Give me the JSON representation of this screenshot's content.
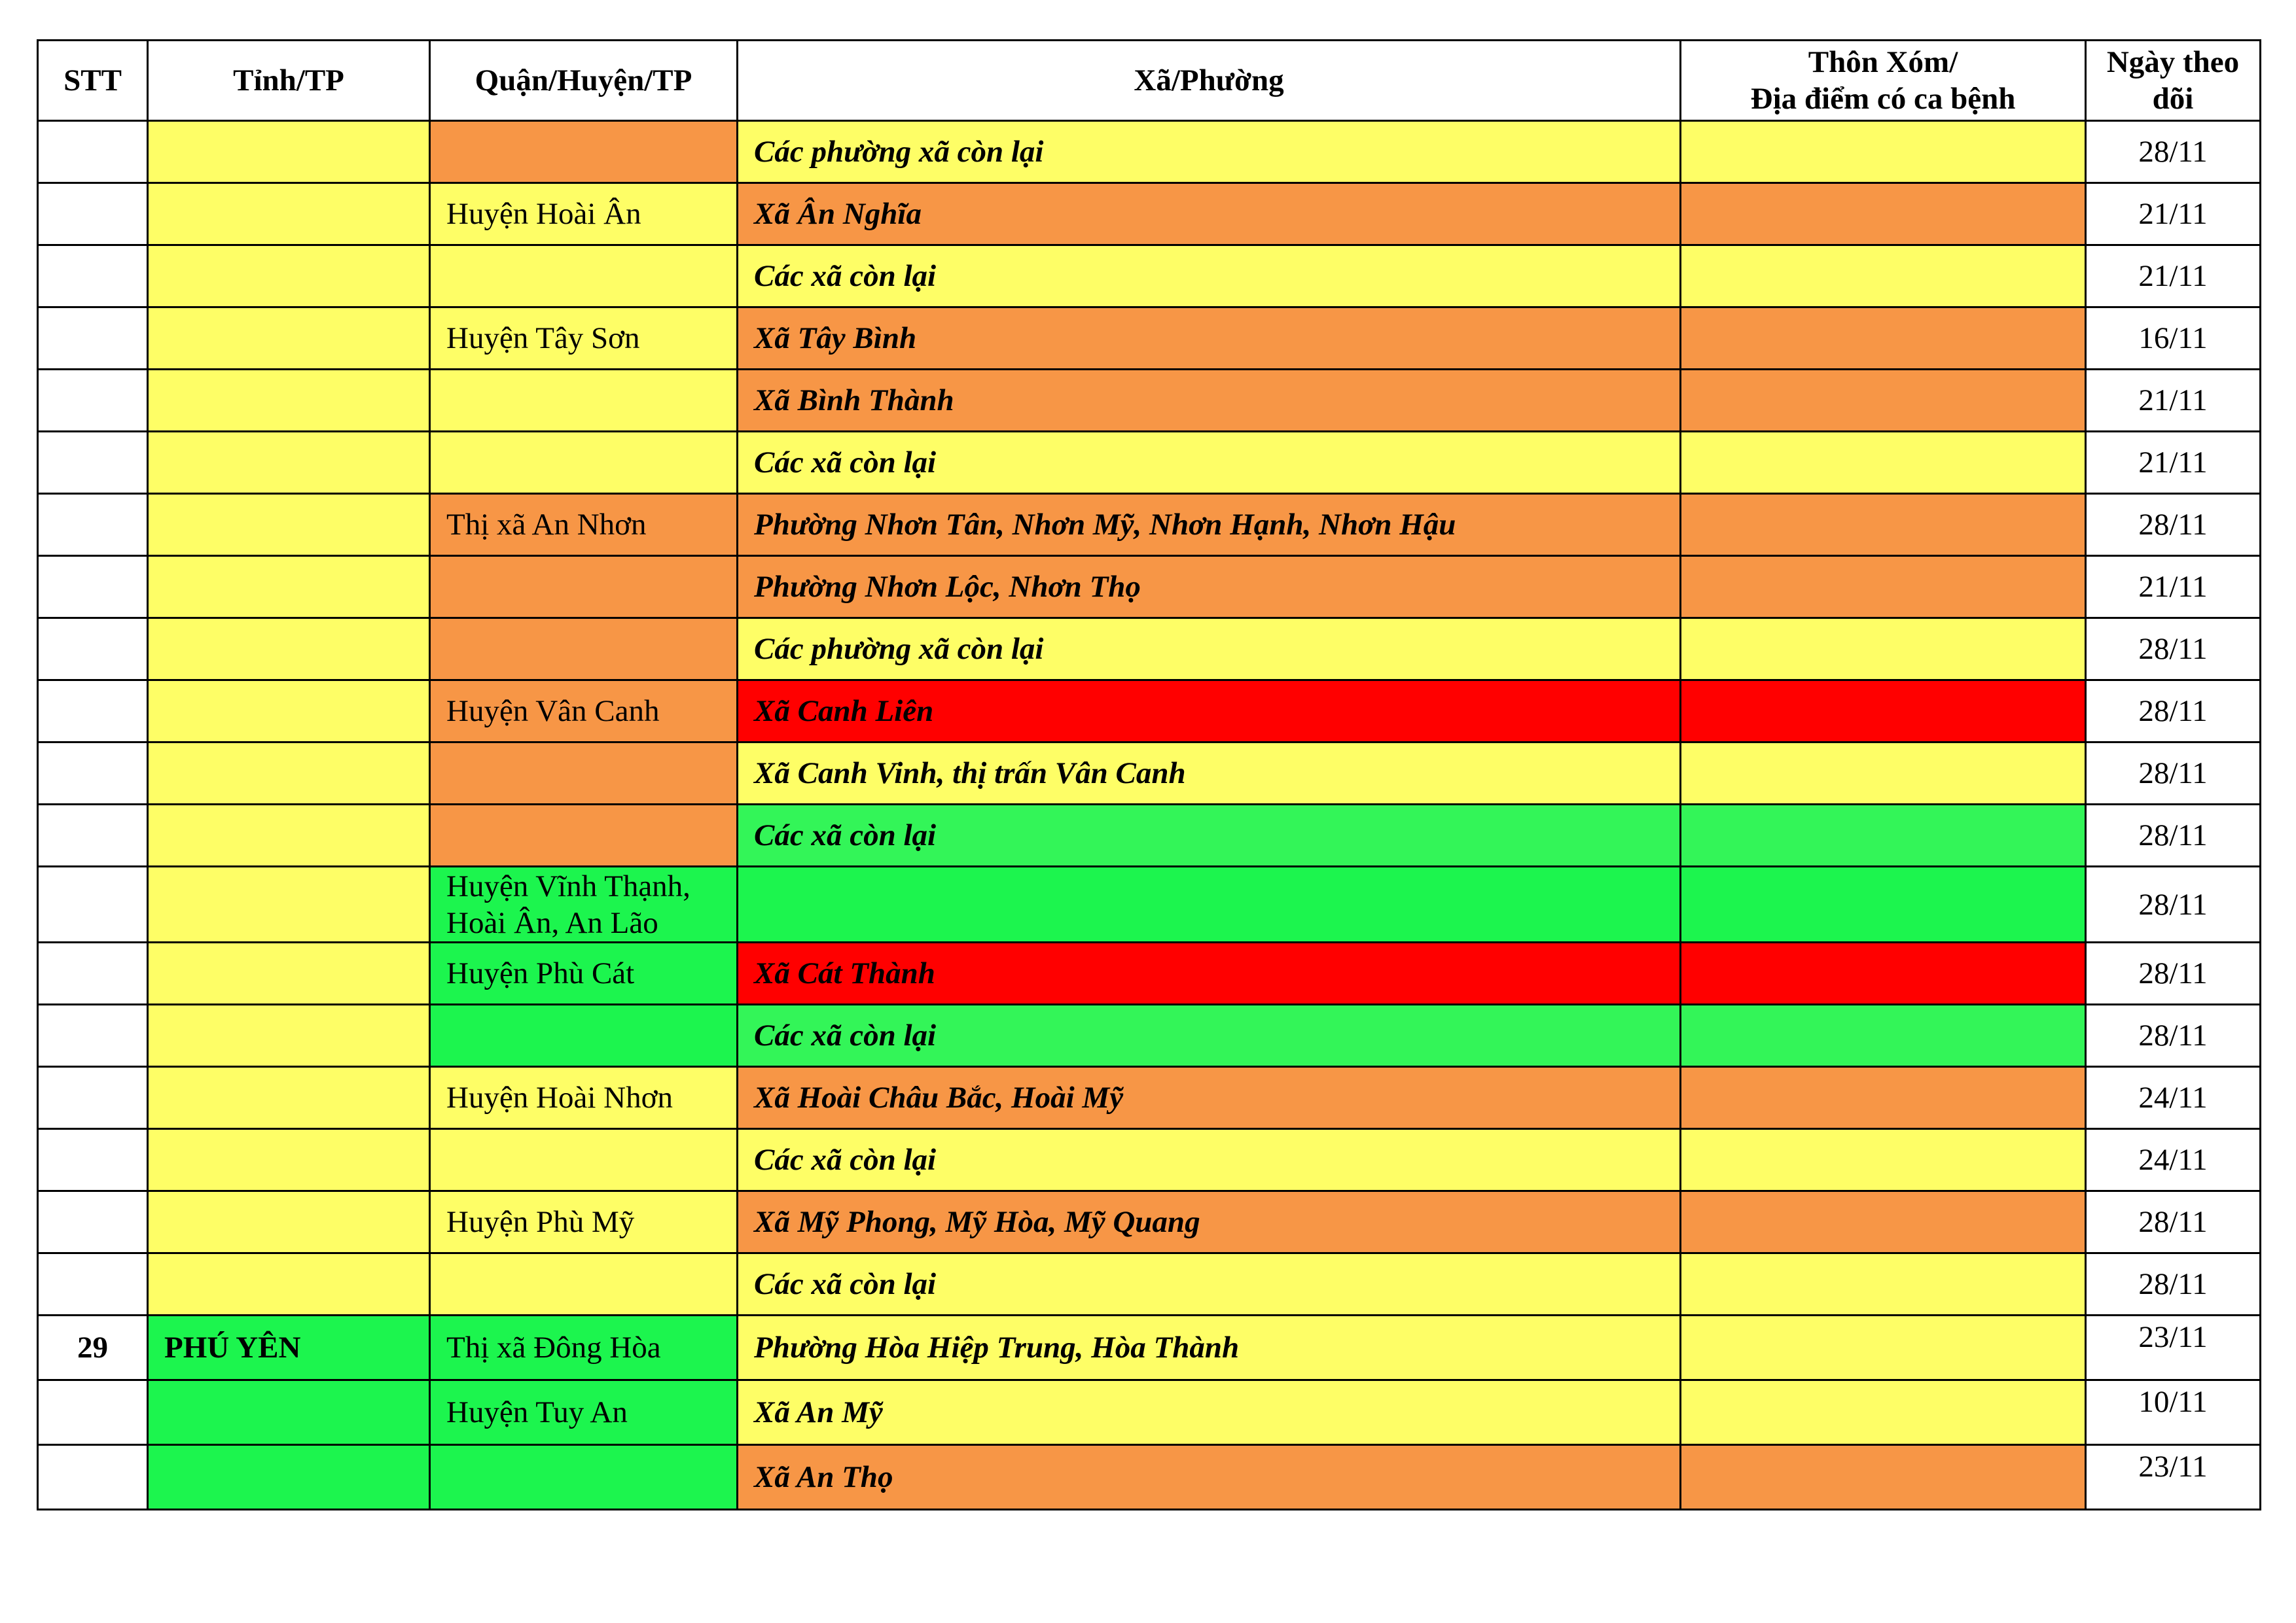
{
  "colors": {
    "Y": "#FEFE66",
    "O": "#F79646",
    "R": "#FF0000",
    "G": "#1CF54E",
    "G2": "#33F558",
    "W": "#FFFFFF"
  },
  "headers": [
    "STT",
    "Tỉnh/TP",
    "Quận/Huyện/TP",
    "Xã/Phường",
    "Thôn Xóm/\nĐịa điểm có ca bệnh",
    "Ngày theo dõi"
  ],
  "rows": [
    {
      "stt": "",
      "tinh": "",
      "tinh_color": "Y",
      "quan": "",
      "quan_color": "O",
      "xa": "Các phường xã còn lại",
      "xa_color": "Y",
      "thon": "",
      "thon_color": "Y",
      "date": "28/11"
    },
    {
      "stt": "",
      "tinh": "",
      "tinh_color": "Y",
      "quan": "Huyện Hoài Ân",
      "quan_color": "Y",
      "xa": "Xã Ân Nghĩa",
      "xa_color": "O",
      "thon": "",
      "thon_color": "O",
      "date": "21/11"
    },
    {
      "stt": "",
      "tinh": "",
      "tinh_color": "Y",
      "quan": "",
      "quan_color": "Y",
      "xa": "Các xã còn lại",
      "xa_color": "Y",
      "thon": "",
      "thon_color": "Y",
      "date": "21/11"
    },
    {
      "stt": "",
      "tinh": "",
      "tinh_color": "Y",
      "quan": "Huyện Tây Sơn",
      "quan_color": "Y",
      "xa": "Xã Tây Bình",
      "xa_color": "O",
      "thon": "",
      "thon_color": "O",
      "date": "16/11"
    },
    {
      "stt": "",
      "tinh": "",
      "tinh_color": "Y",
      "quan": "",
      "quan_color": "Y",
      "xa": "Xã Bình Thành",
      "xa_color": "O",
      "thon": "",
      "thon_color": "O",
      "date": "21/11"
    },
    {
      "stt": "",
      "tinh": "",
      "tinh_color": "Y",
      "quan": "",
      "quan_color": "Y",
      "xa": "Các xã còn lại",
      "xa_color": "Y",
      "thon": "",
      "thon_color": "Y",
      "date": "21/11"
    },
    {
      "stt": "",
      "tinh": "",
      "tinh_color": "Y",
      "quan": "Thị xã An Nhơn",
      "quan_color": "O",
      "xa": "Phường Nhơn Tân, Nhơn Mỹ, Nhơn Hạnh, Nhơn Hậu",
      "xa_color": "O",
      "thon": "",
      "thon_color": "O",
      "date": "28/11"
    },
    {
      "stt": "",
      "tinh": "",
      "tinh_color": "Y",
      "quan": "",
      "quan_color": "O",
      "xa": "Phường Nhơn Lộc, Nhơn Thọ",
      "xa_color": "O",
      "thon": "",
      "thon_color": "O",
      "date": "21/11"
    },
    {
      "stt": "",
      "tinh": "",
      "tinh_color": "Y",
      "quan": "",
      "quan_color": "O",
      "xa": "Các phường xã còn lại",
      "xa_color": "Y",
      "thon": "",
      "thon_color": "Y",
      "date": "28/11"
    },
    {
      "stt": "",
      "tinh": "",
      "tinh_color": "Y",
      "quan": "Huyện Vân Canh",
      "quan_color": "O",
      "xa": "Xã Canh Liên",
      "xa_color": "R",
      "thon": "",
      "thon_color": "R",
      "date": "28/11"
    },
    {
      "stt": "",
      "tinh": "",
      "tinh_color": "Y",
      "quan": "",
      "quan_color": "O",
      "xa": "Xã Canh Vinh, thị trấn Vân Canh",
      "xa_color": "Y",
      "thon": "",
      "thon_color": "Y",
      "date": "28/11"
    },
    {
      "stt": "",
      "tinh": "",
      "tinh_color": "Y",
      "quan": "",
      "quan_color": "O",
      "xa": "Các xã còn lại",
      "xa_color": "G2",
      "thon": "",
      "thon_color": "G2",
      "date": "28/11"
    },
    {
      "stt": "",
      "tinh": "",
      "tinh_color": "Y",
      "quan": "Huyện Vĩnh Thạnh, Hoài Ân, An Lão",
      "quan_color": "G",
      "xa": "",
      "xa_color": "G",
      "thon": "",
      "thon_color": "G",
      "date": "28/11",
      "tall": true
    },
    {
      "stt": "",
      "tinh": "",
      "tinh_color": "Y",
      "quan": "Huyện Phù Cát",
      "quan_color": "G",
      "xa": "Xã Cát Thành",
      "xa_color": "R",
      "thon": "",
      "thon_color": "R",
      "date": "28/11"
    },
    {
      "stt": "",
      "tinh": "",
      "tinh_color": "Y",
      "quan": "",
      "quan_color": "G",
      "xa": "Các xã còn lại",
      "xa_color": "G2",
      "thon": "",
      "thon_color": "G2",
      "date": "28/11"
    },
    {
      "stt": "",
      "tinh": "",
      "tinh_color": "Y",
      "quan": "Huyện Hoài Nhơn",
      "quan_color": "Y",
      "xa": "Xã Hoài Châu Bắc, Hoài Mỹ",
      "xa_color": "O",
      "thon": "",
      "thon_color": "O",
      "date": "24/11"
    },
    {
      "stt": "",
      "tinh": "",
      "tinh_color": "Y",
      "quan": "",
      "quan_color": "Y",
      "xa": "Các xã còn lại",
      "xa_color": "Y",
      "thon": "",
      "thon_color": "Y",
      "date": "24/11"
    },
    {
      "stt": "",
      "tinh": "",
      "tinh_color": "Y",
      "quan": "Huyện Phù Mỹ",
      "quan_color": "Y",
      "xa": "Xã Mỹ Phong, Mỹ Hòa, Mỹ Quang",
      "xa_color": "O",
      "thon": "",
      "thon_color": "O",
      "date": "28/11"
    },
    {
      "stt": "",
      "tinh": "",
      "tinh_color": "Y",
      "quan": "",
      "quan_color": "Y",
      "xa": "Các xã còn lại",
      "xa_color": "Y",
      "thon": "",
      "thon_color": "Y",
      "date": "28/11"
    },
    {
      "stt": "29",
      "tinh": "PHÚ YÊN",
      "tinh_color": "G",
      "quan": "Thị xã Đông Hòa",
      "quan_color": "G",
      "xa": "Phường Hòa Hiệp Trung, Hòa Thành",
      "xa_color": "Y",
      "thon": "",
      "thon_color": "Y",
      "date": "23/11",
      "date_top": true
    },
    {
      "stt": "",
      "tinh": "",
      "tinh_color": "G",
      "quan": "Huyện Tuy An",
      "quan_color": "G",
      "xa": "Xã An Mỹ",
      "xa_color": "Y",
      "thon": "",
      "thon_color": "Y",
      "date": "10/11",
      "date_top": true
    },
    {
      "stt": "",
      "tinh": "",
      "tinh_color": "G",
      "quan": "",
      "quan_color": "G",
      "xa": "Xã An Thọ",
      "xa_color": "O",
      "thon": "",
      "thon_color": "O",
      "date": "23/11",
      "date_top": true
    }
  ]
}
